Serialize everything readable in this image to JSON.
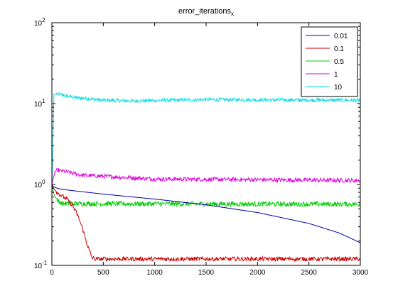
{
  "chart_data": {
    "type": "line",
    "title": "error_iterations",
    "title_subscript": "x",
    "xlabel": "",
    "ylabel": "",
    "xlim": [
      0,
      3000
    ],
    "ylim": [
      0.1,
      100
    ],
    "yscale": "log",
    "xticks": [
      0,
      500,
      1000,
      1500,
      2000,
      2500,
      3000
    ],
    "xtick_labels": [
      "0",
      "500",
      "1000",
      "1500",
      "2000",
      "2500",
      "3000"
    ],
    "yticks": [
      0.1,
      1,
      10,
      100
    ],
    "ytick_labels": [
      {
        "base": "10",
        "exp": "-1"
      },
      {
        "base": "10",
        "exp": "0"
      },
      {
        "base": "10",
        "exp": "1"
      },
      {
        "base": "10",
        "exp": "2"
      }
    ],
    "grid": false,
    "legend_position": "top-right",
    "series": [
      {
        "name": "0.01",
        "color": "#0000aa",
        "noise": 0,
        "x": [
          0,
          10,
          50,
          100,
          200,
          500,
          1000,
          1500,
          2000,
          2500,
          2800,
          3000
        ],
        "values": [
          1.0,
          0.95,
          0.9,
          0.87,
          0.84,
          0.76,
          0.66,
          0.56,
          0.45,
          0.33,
          0.25,
          0.19
        ]
      },
      {
        "name": "0.1",
        "color": "#cc0000",
        "noise": 0.06,
        "x": [
          0,
          20,
          60,
          100,
          150,
          200,
          250,
          300,
          350,
          390,
          420,
          3000
        ],
        "values": [
          1.0,
          0.88,
          0.78,
          0.72,
          0.65,
          0.55,
          0.42,
          0.28,
          0.17,
          0.125,
          0.12,
          0.12
        ]
      },
      {
        "name": "0.5",
        "color": "#00cc00",
        "noise": 0.07,
        "x": [
          0,
          20,
          60,
          100,
          3000
        ],
        "values": [
          1.0,
          0.75,
          0.62,
          0.58,
          0.57
        ]
      },
      {
        "name": "1",
        "color": "#dd00dd",
        "noise": 0.06,
        "x": [
          0,
          30,
          60,
          300,
          1000,
          3000
        ],
        "values": [
          1.0,
          1.45,
          1.5,
          1.3,
          1.17,
          1.12
        ]
      },
      {
        "name": "10",
        "color": "#00dddd",
        "noise": 0.05,
        "x": [
          0,
          20,
          40,
          100,
          200,
          500,
          800,
          1500,
          3000
        ],
        "values": [
          0.9,
          13.0,
          13.2,
          12.8,
          12.0,
          11.0,
          10.8,
          11.2,
          11.0
        ]
      }
    ]
  }
}
